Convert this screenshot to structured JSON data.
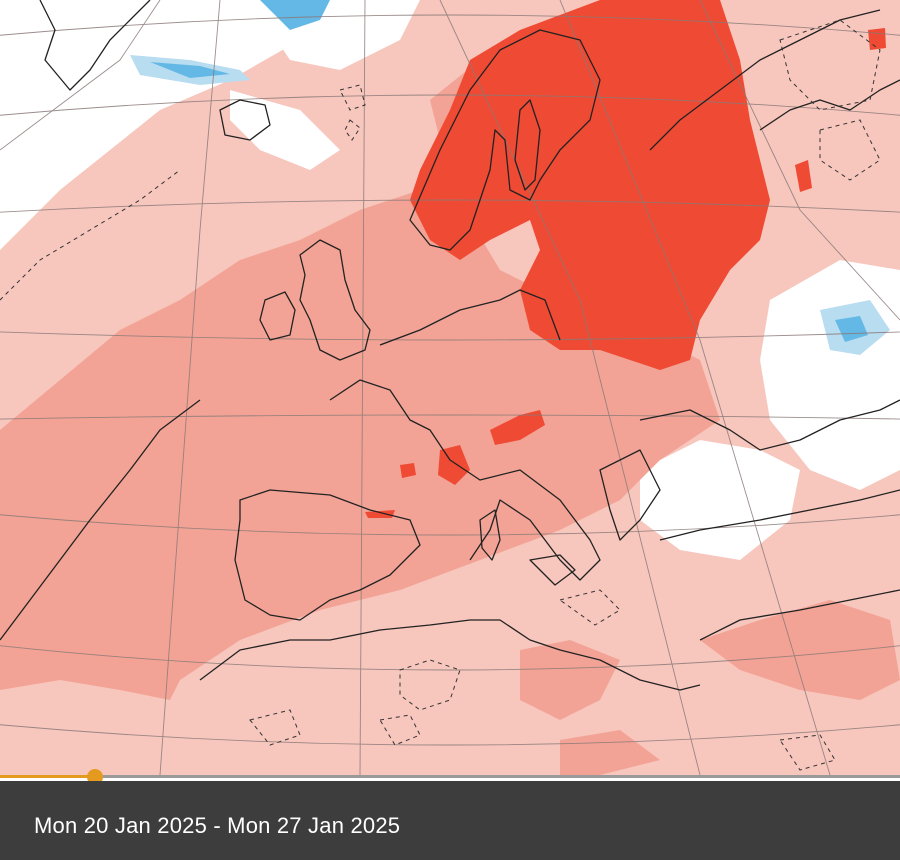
{
  "footer": {
    "date_range": "Mon 20 Jan 2025 - Mon 27 Jan 2025"
  },
  "timeline": {
    "progress_fraction": 0.106
  },
  "colors": {
    "anomaly_strong": "#ef4a33",
    "anomaly_medium": "#f2a395",
    "anomaly_weak": "#f7c6bd",
    "anomaly_neutral": "#ffffff",
    "anomaly_cold_weak": "#b8dcf0",
    "anomaly_cold": "#63b8e6",
    "timeline_accent": "#e39a1e",
    "footer_bg": "#3d3d3d"
  }
}
